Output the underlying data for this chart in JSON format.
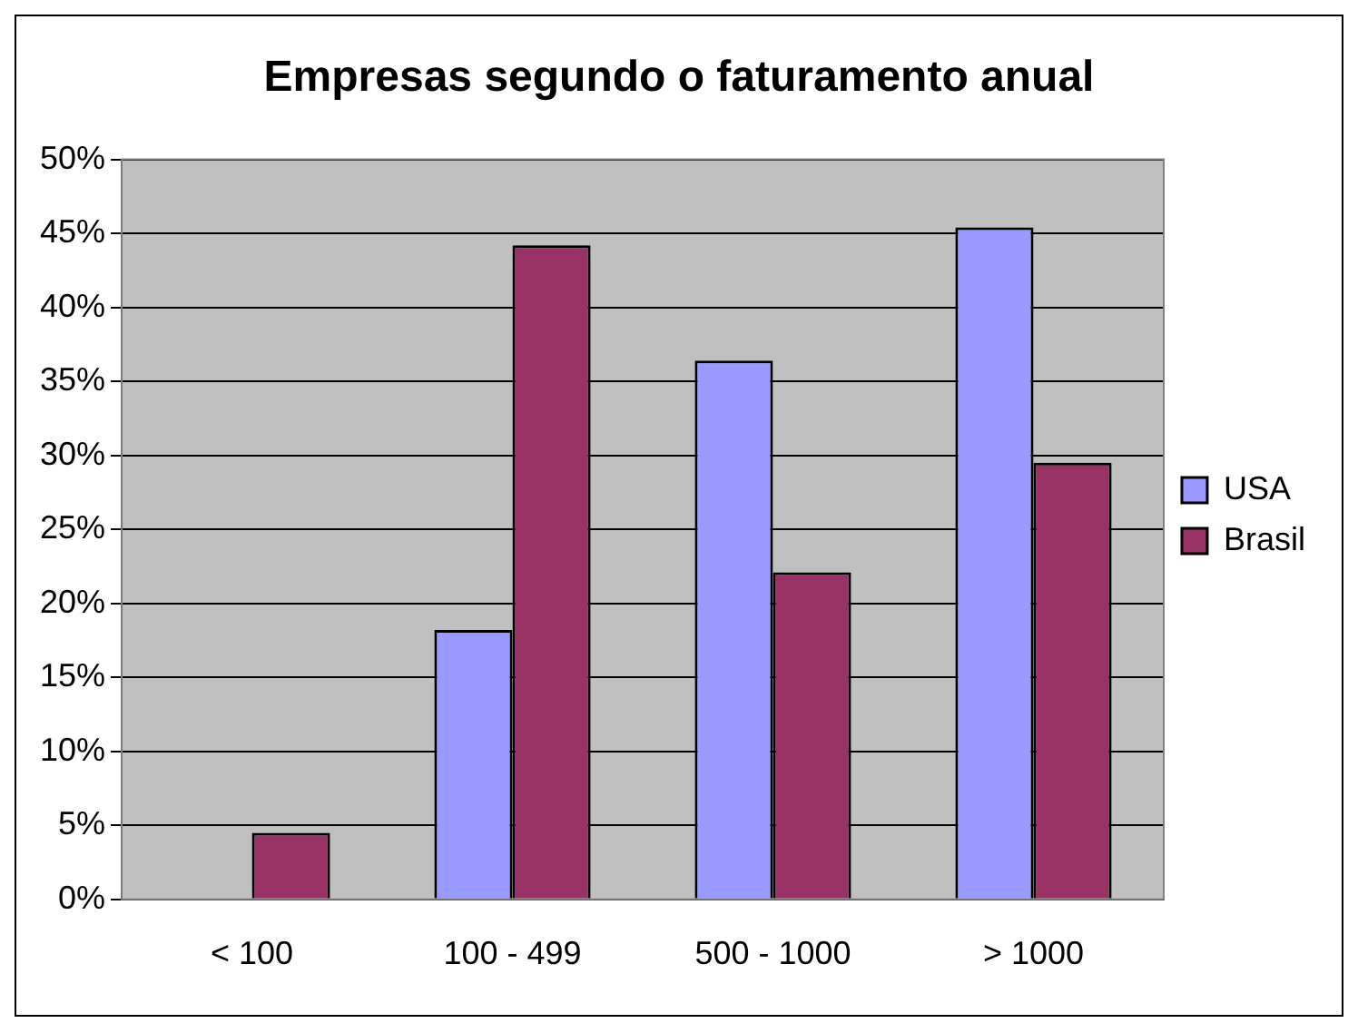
{
  "chart_data": {
    "type": "bar",
    "title": "Empresas segundo o faturamento anual",
    "categories": [
      "< 100",
      "100 - 499",
      "500 - 1000",
      "> 1000"
    ],
    "series": [
      {
        "name": "USA",
        "color": "#9999ff",
        "values": [
          0,
          18.2,
          36.4,
          45.4
        ]
      },
      {
        "name": "Brasil",
        "color": "#993366",
        "values": [
          4.5,
          44.2,
          22.1,
          29.5
        ]
      }
    ],
    "ylim": [
      0,
      50
    ],
    "yticks": [
      {
        "value": 0,
        "label": "0%"
      },
      {
        "value": 5,
        "label": "5%"
      },
      {
        "value": 10,
        "label": "10%"
      },
      {
        "value": 15,
        "label": "15%"
      },
      {
        "value": 20,
        "label": "20%"
      },
      {
        "value": 25,
        "label": "25%"
      },
      {
        "value": 30,
        "label": "30%"
      },
      {
        "value": 35,
        "label": "35%"
      },
      {
        "value": 40,
        "label": "40%"
      },
      {
        "value": 45,
        "label": "45%"
      },
      {
        "value": 50,
        "label": "50%"
      }
    ],
    "grid": "y",
    "legend": "right"
  }
}
